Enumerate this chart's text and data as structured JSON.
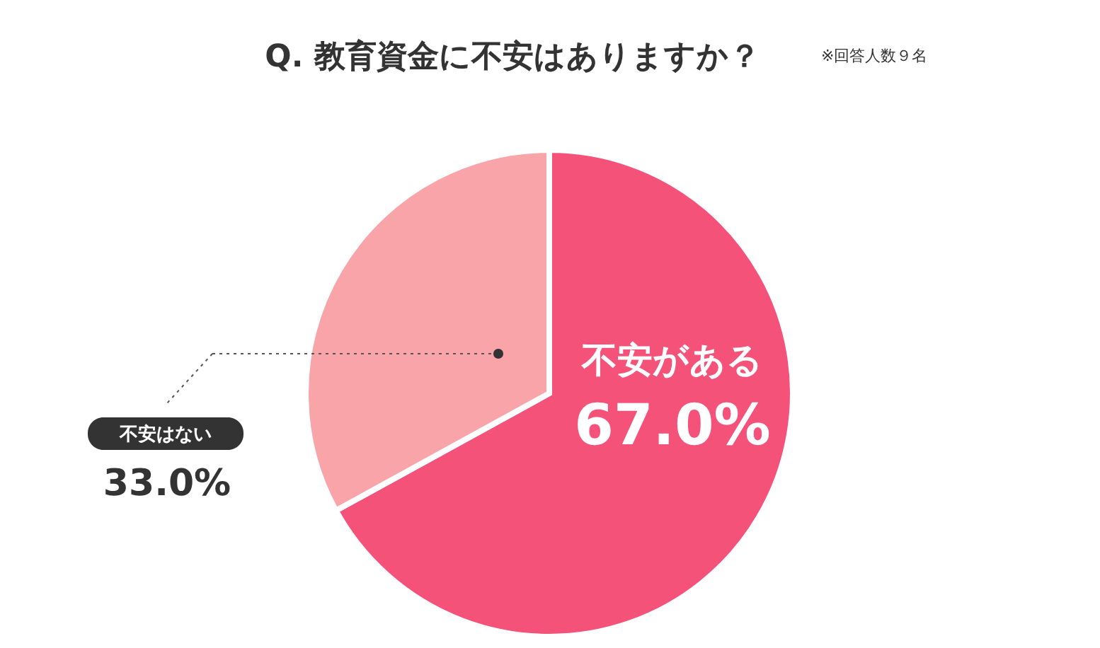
{
  "chart_data": {
    "type": "pie",
    "title": "Q. 教育資金に不安はありますか？",
    "annotations": [
      "※回答人数９名"
    ],
    "categories": [
      "不安がある",
      "不安はない"
    ],
    "values": [
      67.0,
      33.0
    ],
    "colors": [
      "#f5527a",
      "#f8a4a8"
    ],
    "value_labels": [
      "67.0%",
      "33.0%"
    ]
  }
}
